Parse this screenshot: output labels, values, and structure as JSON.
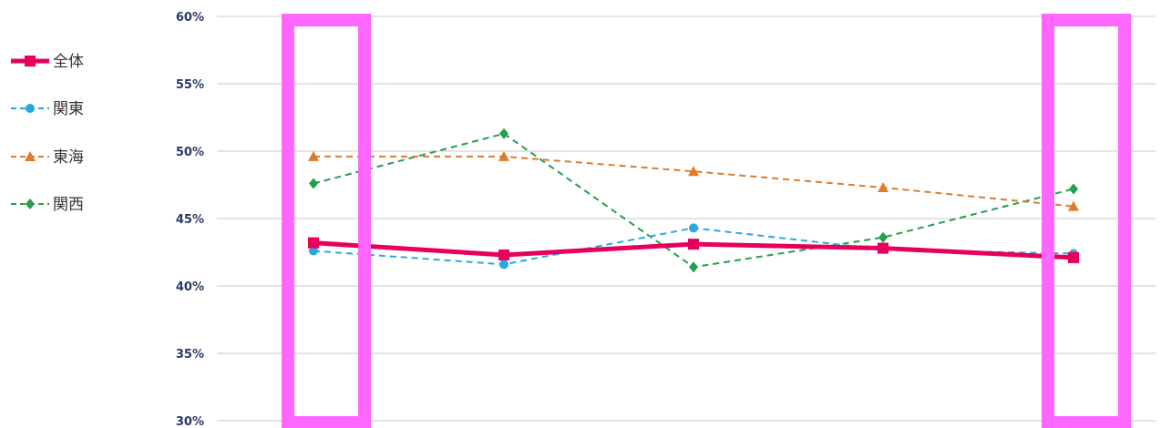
{
  "chart_data": {
    "type": "line",
    "title": "",
    "xlabel": "",
    "ylabel": "",
    "x": [
      1,
      2,
      3,
      4,
      5
    ],
    "ylim": [
      0.3,
      0.6
    ],
    "yticks": [
      {
        "value": 0.6,
        "label": "60%"
      },
      {
        "value": 0.55,
        "label": "55%"
      },
      {
        "value": 0.5,
        "label": "50%"
      },
      {
        "value": 0.45,
        "label": "45%"
      },
      {
        "value": 0.4,
        "label": "40%"
      },
      {
        "value": 0.35,
        "label": "35%"
      },
      {
        "value": 0.3,
        "label": "30%"
      }
    ],
    "grid": true,
    "legend_position": "left",
    "series": [
      {
        "name": "全体",
        "values": [
          0.432,
          0.423,
          0.431,
          0.428,
          0.421
        ],
        "color": "#e6005c",
        "marker": "square",
        "dash": "solid",
        "width": 5
      },
      {
        "name": "関東",
        "values": [
          0.426,
          0.416,
          0.443,
          0.427,
          0.424
        ],
        "color": "#29a8e0",
        "marker": "circle",
        "dash": "dashed",
        "width": 2
      },
      {
        "name": "東海",
        "values": [
          0.496,
          0.496,
          0.485,
          0.473,
          0.459
        ],
        "color": "#e07b2a",
        "marker": "triangle",
        "dash": "dashed",
        "width": 2
      },
      {
        "name": "関西",
        "values": [
          0.476,
          0.513,
          0.414,
          0.436,
          0.472
        ],
        "color": "#22a04b",
        "marker": "diamond",
        "dash": "dashed",
        "width": 2
      }
    ],
    "highlights": [
      {
        "x": 1,
        "color": "#ff66ff"
      },
      {
        "x": 5,
        "color": "#ff66ff"
      }
    ]
  }
}
